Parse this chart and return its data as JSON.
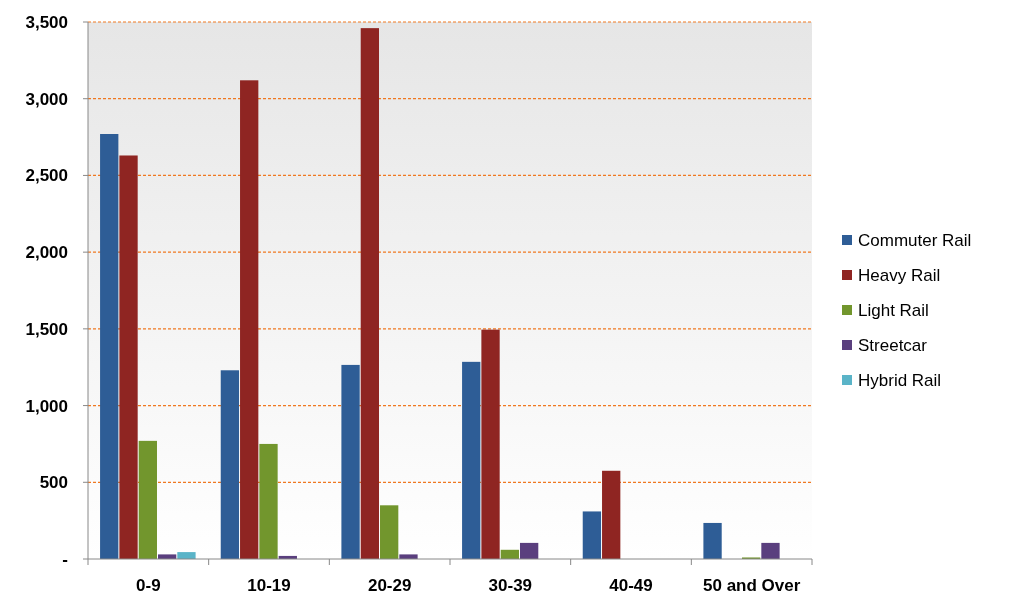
{
  "chart_data": {
    "type": "bar",
    "categories": [
      "0-9",
      "10-19",
      "20-29",
      "30-39",
      "40-49",
      "50 and Over"
    ],
    "series": [
      {
        "name": "Commuter Rail",
        "color": "#2e5d96",
        "values": [
          2770,
          1230,
          1265,
          1285,
          310,
          235
        ]
      },
      {
        "name": "Heavy Rail",
        "color": "#8f2522",
        "values": [
          2630,
          3120,
          3460,
          1495,
          575,
          null
        ]
      },
      {
        "name": "Light Rail",
        "color": "#72962d",
        "values": [
          770,
          750,
          350,
          60,
          null,
          10
        ]
      },
      {
        "name": "Streetcar",
        "color": "#5a3f7e",
        "values": [
          30,
          20,
          30,
          105,
          null,
          105
        ]
      },
      {
        "name": "Hybrid Rail",
        "color": "#5ab4c8",
        "values": [
          45,
          null,
          null,
          null,
          null,
          null
        ]
      }
    ],
    "ylim": [
      0,
      3500
    ],
    "yticks": [
      {
        "value": 0,
        "label": "-"
      },
      {
        "value": 500,
        "label": "500"
      },
      {
        "value": 1000,
        "label": "1,000"
      },
      {
        "value": 1500,
        "label": "1,500"
      },
      {
        "value": 2000,
        "label": "2,000"
      },
      {
        "value": 2500,
        "label": "2,500"
      },
      {
        "value": 3000,
        "label": "3,000"
      },
      {
        "value": 3500,
        "label": "3,500"
      }
    ],
    "grid": "y",
    "legend": "right"
  }
}
